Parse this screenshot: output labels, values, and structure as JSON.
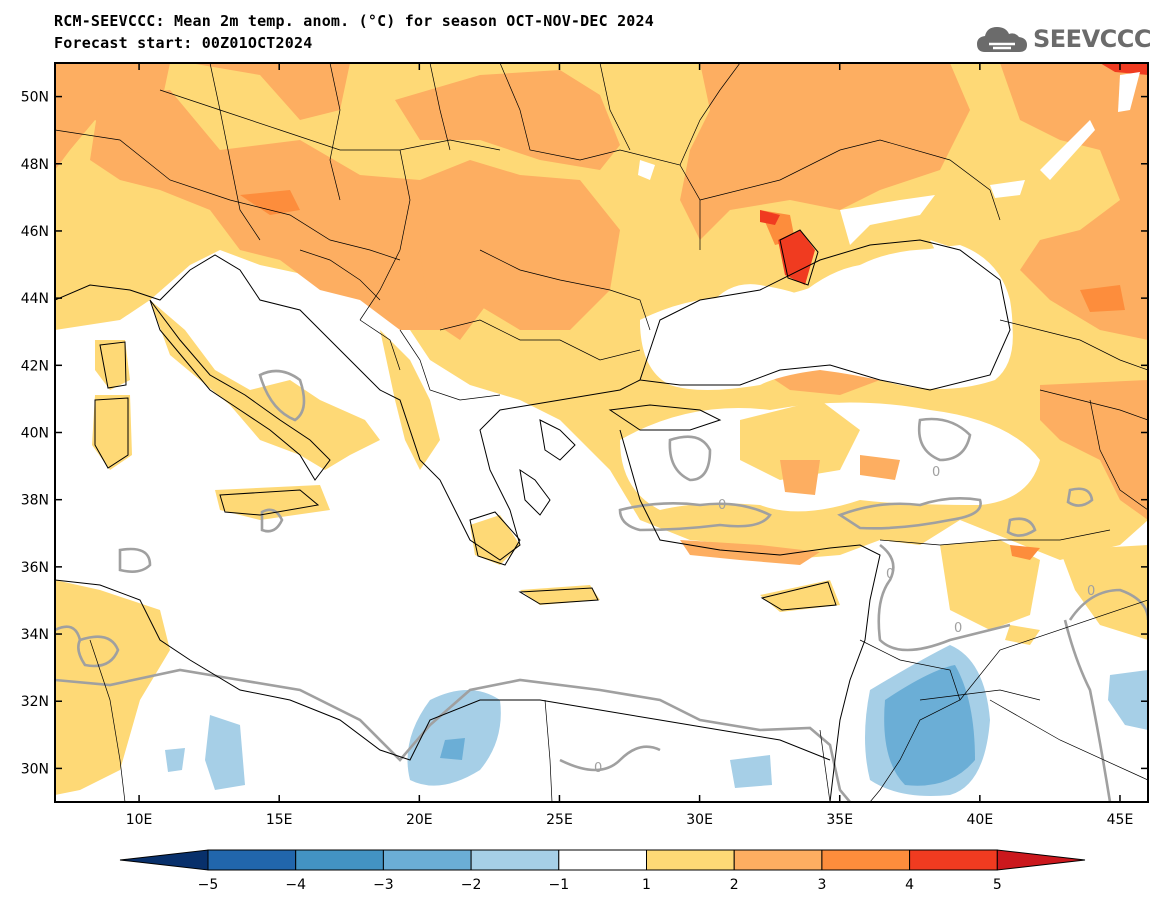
{
  "header": {
    "title_line1": "RCM-SEEVCCC: Mean 2m temp. anom. (°C) for season OCT-NOV-DEC 2024",
    "title_line2": "Forecast start: 00Z01OCT2024"
  },
  "logo": {
    "text": "SEEVCCC",
    "icon": "cloud-icon"
  },
  "map": {
    "lon_range": [
      7,
      46
    ],
    "lat_range": [
      29,
      51
    ],
    "lat_ticks": [
      "50N",
      "48N",
      "46N",
      "44N",
      "42N",
      "40N",
      "38N",
      "36N",
      "34N",
      "32N",
      "30N"
    ],
    "lon_ticks": [
      "10E",
      "15E",
      "20E",
      "25E",
      "30E",
      "35E",
      "40E",
      "45E"
    ],
    "contour_label": "0"
  },
  "colorbar": {
    "labels": [
      "−5",
      "−4",
      "−3",
      "−2",
      "−1",
      "1",
      "2",
      "3",
      "4",
      "5"
    ],
    "colors": [
      "#08306b",
      "#2166ac",
      "#4393c3",
      "#6baed6",
      "#a6cfe7",
      "#ffffff",
      "#fed976",
      "#fdae61",
      "#fd8d3c",
      "#f03b20",
      "#cb181d"
    ]
  }
}
